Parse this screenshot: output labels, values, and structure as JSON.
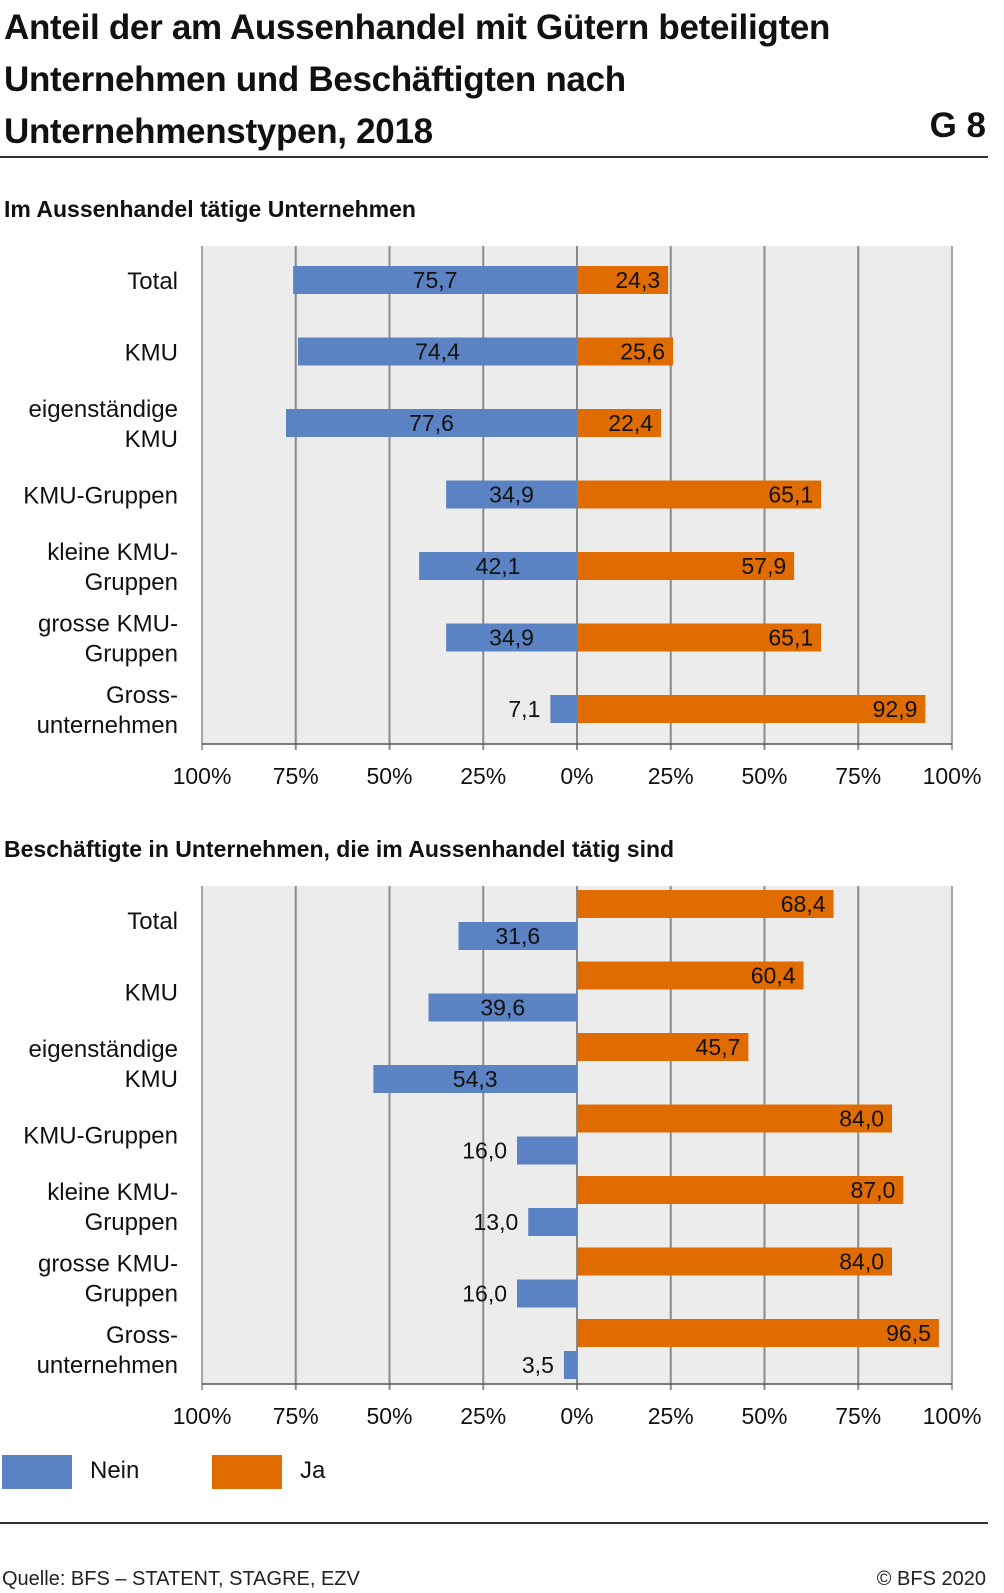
{
  "title": "Anteil der am Aussenhandel mit Gütern beteiligten Unternehmen und Beschäftigten nach Unternehmenstypen, 2018",
  "graphic_number": "G 8",
  "legend": {
    "no": "Nein",
    "yes": "Ja"
  },
  "source": "Quelle: BFS – STATENT, STAGRE, EZV",
  "copyright": "© BFS 2020",
  "colors": {
    "no": "#5b82c2",
    "yes": "#e06c00",
    "plot_bg": "#ececec",
    "grid": "#8a8a8a"
  },
  "chart_data": [
    {
      "type": "bar",
      "orientation": "horizontal-diverging",
      "title": "Im Aussenhandel tätige Unternehmen",
      "xlim": [
        -100,
        100
      ],
      "x_tick_labels": [
        "100%",
        "75%",
        "50%",
        "25%",
        "0%",
        "25%",
        "50%",
        "75%",
        "100%"
      ],
      "categories": [
        [
          "Total"
        ],
        [
          "KMU"
        ],
        [
          "eigenständige",
          "KMU"
        ],
        [
          "KMU-Gruppen"
        ],
        [
          "kleine KMU-",
          "Gruppen"
        ],
        [
          "grosse KMU-",
          "Gruppen"
        ],
        [
          "Gross-",
          "unternehmen"
        ]
      ],
      "series": [
        {
          "name": "Nein",
          "side": "left",
          "values": [
            75.7,
            74.4,
            77.6,
            34.9,
            42.1,
            34.9,
            7.1
          ],
          "labels": [
            "75,7",
            "74,4",
            "77,6",
            "34,9",
            "42,1",
            "34,9",
            "7,1"
          ]
        },
        {
          "name": "Ja",
          "side": "right",
          "values": [
            24.3,
            25.6,
            22.4,
            65.1,
            57.9,
            65.1,
            92.9
          ],
          "labels": [
            "24,3",
            "25,6",
            "22,4",
            "65,1",
            "57,9",
            "65,1",
            "92,9"
          ]
        }
      ]
    },
    {
      "type": "bar",
      "orientation": "horizontal-diverging",
      "title": "Beschäftigte in Unternehmen, die im Aussenhandel tätig sind",
      "xlim": [
        -100,
        100
      ],
      "x_tick_labels": [
        "100%",
        "75%",
        "50%",
        "25%",
        "0%",
        "25%",
        "50%",
        "75%",
        "100%"
      ],
      "categories": [
        [
          "Total"
        ],
        [
          "KMU"
        ],
        [
          "eigenständige",
          "KMU"
        ],
        [
          "KMU-Gruppen"
        ],
        [
          "kleine KMU-",
          "Gruppen"
        ],
        [
          "grosse KMU-",
          "Gruppen"
        ],
        [
          "Gross-",
          "unternehmen"
        ]
      ],
      "series": [
        {
          "name": "Nein",
          "side": "left",
          "values": [
            31.6,
            39.6,
            54.3,
            16.0,
            13.0,
            16.0,
            3.5
          ],
          "labels": [
            "31,6",
            "39,6",
            "54,3",
            "16,0",
            "13,0",
            "16,0",
            "3,5"
          ]
        },
        {
          "name": "Ja",
          "side": "right",
          "values": [
            68.4,
            60.4,
            45.7,
            84.0,
            87.0,
            84.0,
            96.5
          ],
          "labels": [
            "68,4",
            "60,4",
            "45,7",
            "84,0",
            "87,0",
            "84,0",
            "96,5"
          ]
        }
      ]
    }
  ]
}
